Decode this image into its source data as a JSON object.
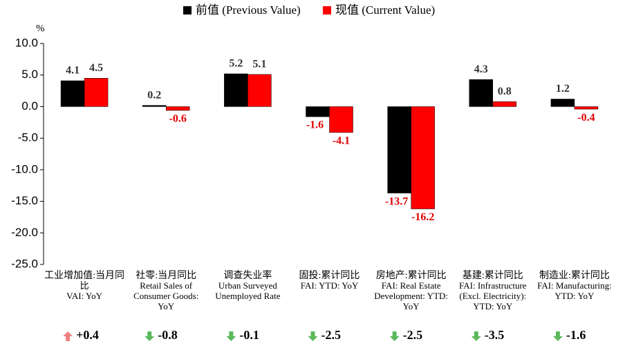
{
  "chart_data": {
    "type": "bar",
    "y_unit": "%",
    "categories": [
      [
        "工业增加值:当月同",
        "比",
        "VAI: YoY"
      ],
      [
        "社零:当月同比",
        "Retail Sales of",
        "Consumer Goods:",
        "YoY"
      ],
      [
        "调查失业率",
        "Urban Surveyed",
        "Unemployed Rate"
      ],
      [
        "固投:累计同比",
        "FAI: YTD: YoY"
      ],
      [
        "房地产:累计同比",
        "FAI: Real Estate",
        "Development: YTD:",
        "YoY"
      ],
      [
        "基建:累计同比",
        "FAI: Infrastructure",
        "(Excl. Electricity):",
        "YTD: YoY"
      ],
      [
        "制造业:累计同比",
        "FAI: Manufacturing:",
        "YTD: YoY"
      ]
    ],
    "series": [
      {
        "name": "前值 (Previous Value)",
        "color": "#000000",
        "values": [
          4.1,
          0.2,
          5.2,
          -1.6,
          -13.7,
          4.3,
          1.2
        ]
      },
      {
        "name": "现值 (Current Value)",
        "color": "#ff0000",
        "values": [
          4.5,
          -0.6,
          5.1,
          -4.1,
          -16.2,
          0.8,
          -0.4
        ]
      }
    ],
    "changes": [
      0.4,
      -0.8,
      -0.1,
      -2.5,
      -2.5,
      -3.5,
      -1.6
    ],
    "change_labels": [
      "+0.4",
      "-0.8",
      "-0.1",
      "-2.5",
      "-2.5",
      "-3.5",
      "-1.6"
    ],
    "ylim": [
      -25,
      10
    ],
    "yticks": [
      {
        "value": 10,
        "label": "10.0"
      },
      {
        "value": 5,
        "label": "5.0"
      },
      {
        "value": 0,
        "label": "0.0"
      },
      {
        "value": -5,
        "label": "-5.0"
      },
      {
        "value": -10,
        "label": "-10.0"
      },
      {
        "value": -15,
        "label": "-15.0"
      },
      {
        "value": -20,
        "label": "-20.0"
      },
      {
        "value": -25,
        "label": "-25.0"
      }
    ]
  }
}
